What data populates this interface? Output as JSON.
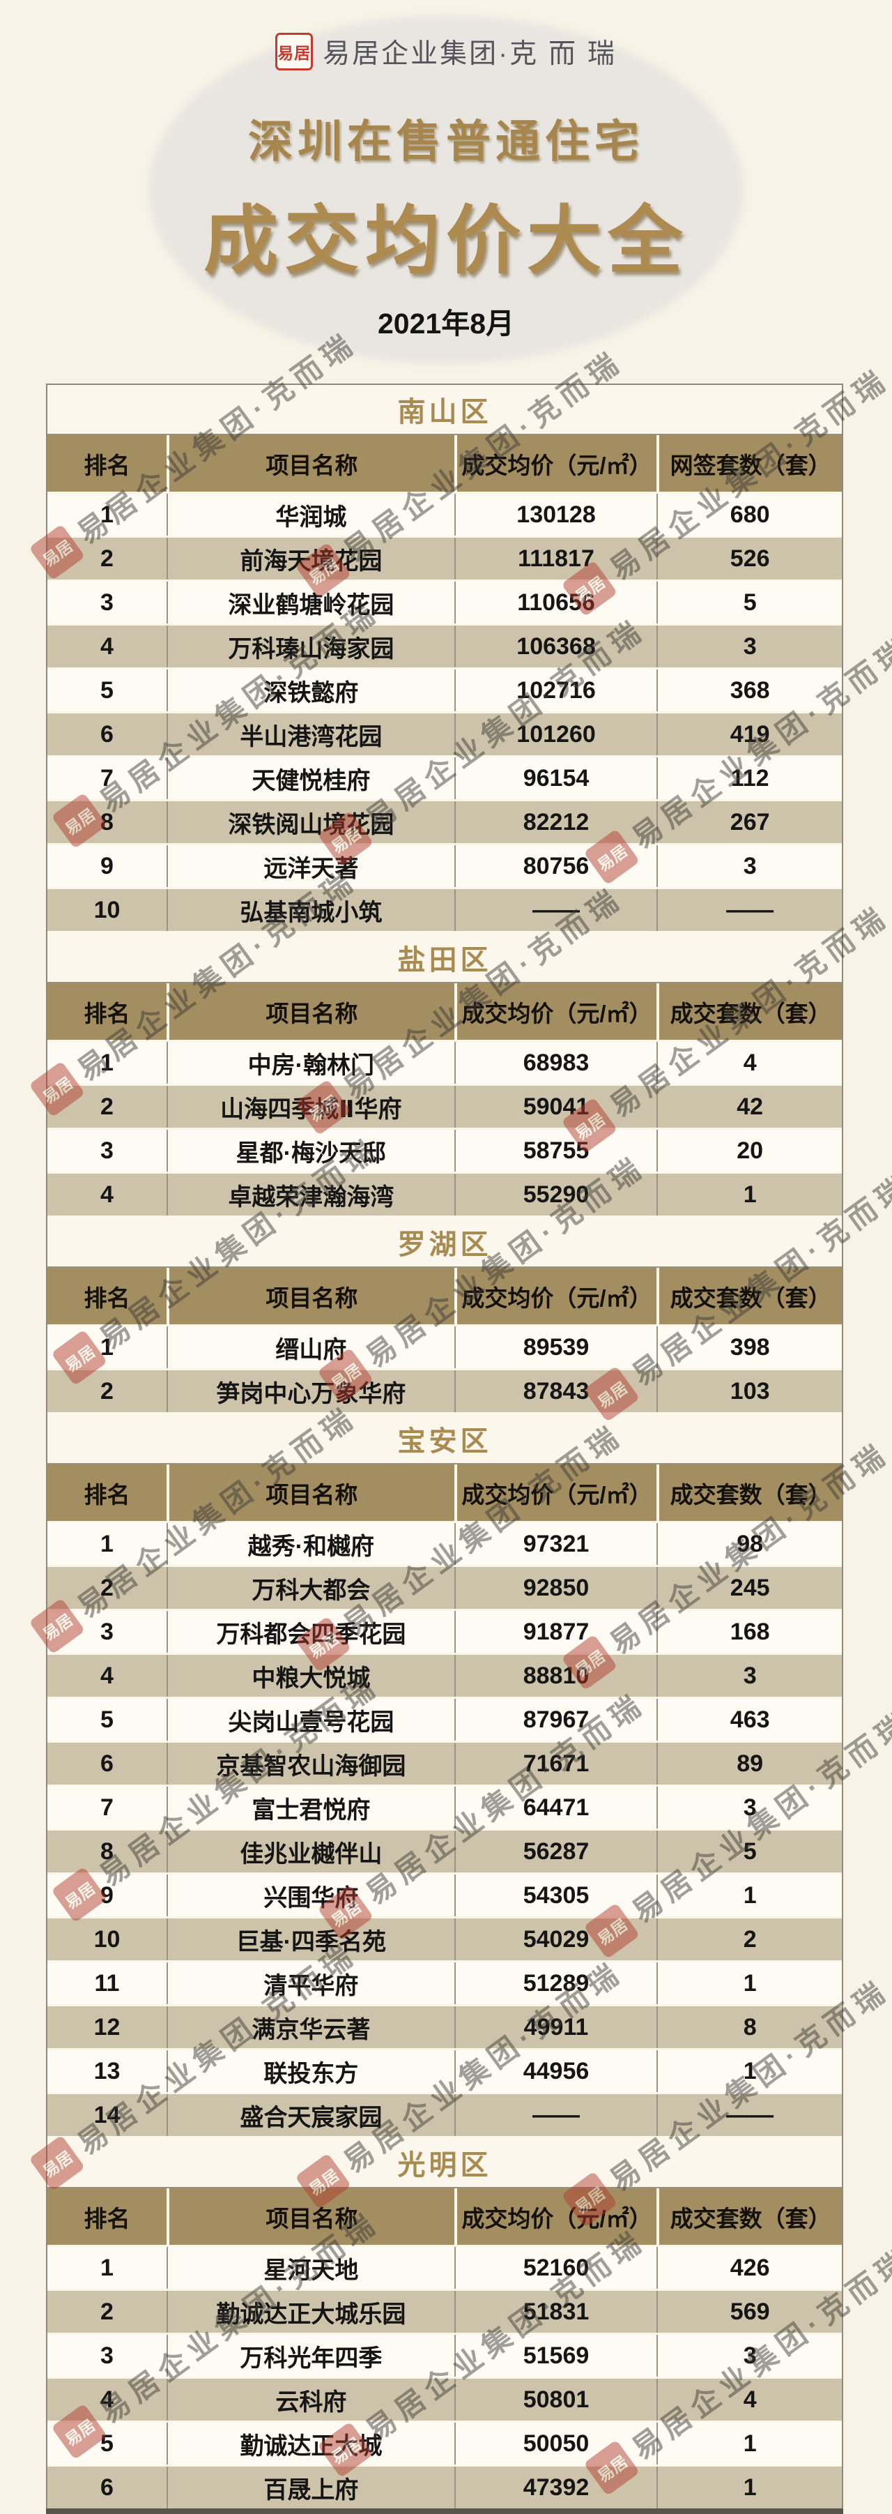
{
  "header": {
    "logo_seal": "易居",
    "logo_text": "易居企业集团·克 而 瑞",
    "title_line1": "深圳在售普通住宅",
    "title_line2": "成交均价大全",
    "date": "2021年8月"
  },
  "watermark": {
    "seal": "易居",
    "text": "易居企业集团·克而瑞"
  },
  "colors": {
    "page_bg": "#f7f3e7",
    "header_khaki": "#a28e61",
    "row_tan": "#cdc3aa",
    "row_white": "#fdfbf3",
    "title_gold": "#ac8a50",
    "seal_red": "#c23b2e"
  },
  "chart_data": [
    {
      "type": "table",
      "title": "南山区",
      "columns": [
        "排名",
        "项目名称",
        "成交均价（元/㎡）",
        "网签套数（套）"
      ],
      "rows": [
        [
          "1",
          "华润城",
          "130128",
          "680"
        ],
        [
          "2",
          "前海天境花园",
          "111817",
          "526"
        ],
        [
          "3",
          "深业鹤塘岭花园",
          "110656",
          "5"
        ],
        [
          "4",
          "万科瑧山海家园",
          "106368",
          "3"
        ],
        [
          "5",
          "深铁懿府",
          "102716",
          "368"
        ],
        [
          "6",
          "半山港湾花园",
          "101260",
          "419"
        ],
        [
          "7",
          "天健悦桂府",
          "96154",
          "112"
        ],
        [
          "8",
          "深铁阅山境花园",
          "82212",
          "267"
        ],
        [
          "9",
          "远洋天著",
          "80756",
          "3"
        ],
        [
          "10",
          "弘基南城小筑",
          "——",
          "——"
        ]
      ]
    },
    {
      "type": "table",
      "title": "盐田区",
      "columns": [
        "排名",
        "项目名称",
        "成交均价（元/㎡）",
        "成交套数（套）"
      ],
      "rows": [
        [
          "1",
          "中房·翰林门",
          "68983",
          "4"
        ],
        [
          "2",
          "山海四季城Ⅱ华府",
          "59041",
          "42"
        ],
        [
          "3",
          "星都·梅沙天邸",
          "58755",
          "20"
        ],
        [
          "4",
          "卓越荣津瀚海湾",
          "55290",
          "1"
        ]
      ]
    },
    {
      "type": "table",
      "title": "罗湖区",
      "columns": [
        "排名",
        "项目名称",
        "成交均价（元/㎡）",
        "成交套数（套）"
      ],
      "rows": [
        [
          "1",
          "缙山府",
          "89539",
          "398"
        ],
        [
          "2",
          "笋岗中心万象华府",
          "87843",
          "103"
        ]
      ]
    },
    {
      "type": "table",
      "title": "宝安区",
      "columns": [
        "排名",
        "项目名称",
        "成交均价（元/㎡）",
        "成交套数（套）"
      ],
      "rows": [
        [
          "1",
          "越秀·和樾府",
          "97321",
          "98"
        ],
        [
          "2",
          "万科大都会",
          "92850",
          "245"
        ],
        [
          "3",
          "万科都会四季花园",
          "91877",
          "168"
        ],
        [
          "4",
          "中粮大悦城",
          "88810",
          "3"
        ],
        [
          "5",
          "尖岗山壹号花园",
          "87967",
          "463"
        ],
        [
          "6",
          "京基智农山海御园",
          "71671",
          "89"
        ],
        [
          "7",
          "富士君悦府",
          "64471",
          "3"
        ],
        [
          "8",
          "佳兆业樾伴山",
          "56287",
          "5"
        ],
        [
          "9",
          "兴围华府",
          "54305",
          "1"
        ],
        [
          "10",
          "巨基·四季名苑",
          "54029",
          "2"
        ],
        [
          "11",
          "清平华府",
          "51289",
          "1"
        ],
        [
          "12",
          "满京华云著",
          "49911",
          "8"
        ],
        [
          "13",
          "联投东方",
          "44956",
          "1"
        ],
        [
          "14",
          "盛合天宸家园",
          "——",
          "——"
        ]
      ]
    },
    {
      "type": "table",
      "title": "光明区",
      "columns": [
        "排名",
        "项目名称",
        "成交均价（元/㎡）",
        "成交套数（套）"
      ],
      "rows": [
        [
          "1",
          "星河天地",
          "52160",
          "426"
        ],
        [
          "2",
          "勤诚达正大城乐园",
          "51831",
          "569"
        ],
        [
          "3",
          "万科光年四季",
          "51569",
          "3"
        ],
        [
          "4",
          "云科府",
          "50801",
          "4"
        ],
        [
          "5",
          "勤诚达正大城",
          "50050",
          "1"
        ],
        [
          "6",
          "百晟上府",
          "47392",
          "1"
        ]
      ]
    }
  ]
}
